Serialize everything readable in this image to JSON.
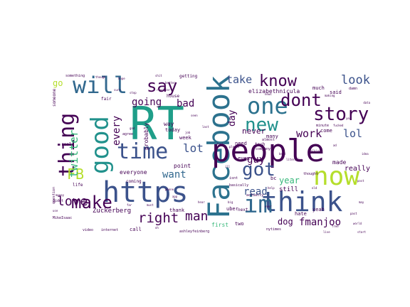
{
  "palette": {
    "deep-purple": "#440154",
    "indigo": "#3b528b",
    "slate-blue": "#31688e",
    "steel": "#2c728e",
    "teal": "#21918c",
    "green-teal": "#1f9e89",
    "green": "#35b779",
    "lime": "#6ece58",
    "chartreuse": "#b5de2b",
    "yellow": "#fde725"
  },
  "words": [
    {
      "text": "RT",
      "color": "#1f9e89",
      "weight": 100
    },
    {
      "text": "Facebook",
      "color": "#2c728e",
      "weight": 62
    },
    {
      "text": "people",
      "color": "#440154",
      "weight": 58
    },
    {
      "text": "https",
      "color": "#3b528b",
      "weight": 56
    },
    {
      "text": "think",
      "color": "#3b528b",
      "weight": 50
    },
    {
      "text": "now",
      "color": "#b5de2b",
      "weight": 47
    },
    {
      "text": "good",
      "color": "#21918c",
      "weight": 46
    },
    {
      "text": "will",
      "color": "#31688e",
      "weight": 44
    },
    {
      "text": "im",
      "color": "#31688e",
      "weight": 43
    },
    {
      "text": "one",
      "color": "#2c728e",
      "weight": 43
    },
    {
      "text": "thing",
      "color": "#440154",
      "weight": 40
    },
    {
      "text": "time",
      "color": "#3b528b",
      "weight": 39
    },
    {
      "text": "new",
      "color": "#21918c",
      "weight": 36
    },
    {
      "text": "dont",
      "color": "#440154",
      "weight": 34
    },
    {
      "text": "got",
      "color": "#3b528b",
      "weight": 32
    },
    {
      "text": "story",
      "color": "#440154",
      "weight": 32
    },
    {
      "text": "make",
      "color": "#440154",
      "weight": 30
    },
    {
      "text": "know",
      "color": "#440154",
      "weight": 28
    },
    {
      "text": "say",
      "color": "#440154",
      "weight": 28
    },
    {
      "text": "FB",
      "color": "#b5de2b",
      "weight": 26
    },
    {
      "text": "right",
      "color": "#440154",
      "weight": 24
    },
    {
      "text": "love",
      "color": "#440154",
      "weight": 22
    },
    {
      "text": "man",
      "color": "#440154",
      "weight": 22
    },
    {
      "text": "look",
      "color": "#3b528b",
      "weight": 21
    },
    {
      "text": "twitter",
      "color": "#35b779",
      "weight": 20
    },
    {
      "text": "take",
      "color": "#3b528b",
      "weight": 18
    },
    {
      "text": "lot",
      "color": "#3b528b",
      "weight": 18
    },
    {
      "text": "work",
      "color": "#440154",
      "weight": 17
    },
    {
      "text": "lol",
      "color": "#3b528b",
      "weight": 17
    },
    {
      "text": "want",
      "color": "#31688e",
      "weight": 16
    },
    {
      "text": "going",
      "color": "#440154",
      "weight": 16
    },
    {
      "text": "guy",
      "color": "#440154",
      "weight": 16
    },
    {
      "text": "fmanjoo",
      "color": "#440154",
      "weight": 15
    },
    {
      "text": "read",
      "color": "#3b528b",
      "weight": 15
    },
    {
      "text": "bad",
      "color": "#440154",
      "weight": 14
    },
    {
      "text": "every",
      "color": "#440154",
      "weight": 14
    },
    {
      "text": "day",
      "color": "#440154",
      "weight": 14
    },
    {
      "text": "year",
      "color": "#35b779",
      "weight": 13
    },
    {
      "text": "dog",
      "color": "#440154",
      "weight": 13
    },
    {
      "text": "go",
      "color": "#b5de2b",
      "weight": 12
    },
    {
      "text": "never",
      "color": "#440154",
      "weight": 12
    },
    {
      "text": "Zuckerberg",
      "color": "#440154",
      "weight": 10
    },
    {
      "text": "really",
      "color": "#440154",
      "weight": 10
    },
    {
      "text": "still",
      "color": "#440154",
      "weight": 10
    },
    {
      "text": "made",
      "color": "#440154",
      "weight": 9
    },
    {
      "text": "elizabethnicula",
      "color": "#440154",
      "weight": 9
    },
    {
      "text": "everyone",
      "color": "#440154",
      "weight": 9
    },
    {
      "text": "point",
      "color": "#440154",
      "weight": 9
    },
    {
      "text": "way",
      "color": "#440154",
      "weight": 9
    },
    {
      "text": "first",
      "color": "#35b779",
      "weight": 9
    },
    {
      "text": "probably",
      "color": "#440154",
      "weight": 9
    },
    {
      "text": "thank",
      "color": "#440154",
      "weight": 8
    },
    {
      "text": "hate",
      "color": "#440154",
      "weight": 8
    },
    {
      "text": "yeah",
      "color": "#440154",
      "weight": 8
    },
    {
      "text": "much",
      "color": "#440154",
      "weight": 8
    },
    {
      "text": "today",
      "color": "#440154",
      "weight": 8
    },
    {
      "text": "bc",
      "color": "#440154",
      "weight": 8
    },
    {
      "text": "two",
      "color": "#440154",
      "weight": 8
    },
    {
      "text": "even",
      "color": "#440154",
      "weight": 8
    },
    {
      "text": "need",
      "color": "#440154",
      "weight": 8
    },
    {
      "text": "said",
      "color": "#440154",
      "weight": 7
    },
    {
      "text": "week",
      "color": "#440154",
      "weight": 7
    },
    {
      "text": "uber",
      "color": "#440154",
      "weight": 7
    },
    {
      "text": "call",
      "color": "#440154",
      "weight": 7
    },
    {
      "text": "come",
      "color": "#440154",
      "weight": 7
    },
    {
      "text": "many",
      "color": "#440154",
      "weight": 7
    },
    {
      "text": "someone",
      "color": "#440154",
      "weight": 7
    },
    {
      "text": "getting",
      "color": "#440154",
      "weight": 6
    },
    {
      "text": "tech",
      "color": "#440154",
      "weight": 6
    },
    {
      "text": "life",
      "color": "#440154",
      "weight": 6
    },
    {
      "text": "house",
      "color": "#440154",
      "weight": 6
    },
    {
      "text": "next",
      "color": "#440154",
      "weight": 6
    },
    {
      "text": "fair",
      "color": "#440154",
      "weight": 6
    },
    {
      "text": "real",
      "color": "#440154",
      "weight": 6
    },
    {
      "text": "coming",
      "color": "#440154",
      "weight": 6
    },
    {
      "text": "ashleyfeinberg",
      "color": "#440154",
      "weight": 5
    },
    {
      "text": "MikeIsaac",
      "color": "#440154",
      "weight": 5
    },
    {
      "text": "nytimes",
      "color": "#440154",
      "weight": 5
    },
    {
      "text": "internet",
      "color": "#440154",
      "weight": 5
    },
    {
      "text": "thought",
      "color": "#440154",
      "weight": 5
    },
    {
      "text": "something",
      "color": "#440154",
      "weight": 5
    },
    {
      "text": "didnt",
      "color": "#440154",
      "weight": 5
    },
    {
      "text": "actually",
      "color": "#440154",
      "weight": 5
    },
    {
      "text": "damn",
      "color": "#440154",
      "weight": 5
    },
    {
      "text": "video",
      "color": "#440154",
      "weight": 5
    },
    {
      "text": "isnt",
      "color": "#440154",
      "weight": 5
    },
    {
      "text": "agree",
      "color": "#440154",
      "weight": 5
    },
    {
      "text": "company",
      "color": "#440154",
      "weight": 5
    },
    {
      "text": "almost",
      "color": "#440154",
      "weight": 5
    },
    {
      "text": "question",
      "color": "#440154",
      "weight": 5
    },
    {
      "text": "basically",
      "color": "#440154",
      "weight": 5
    },
    {
      "text": "minute",
      "color": "#440154",
      "weight": 5
    },
    {
      "text": "reporter",
      "color": "#440154",
      "weight": 4
    },
    {
      "text": "making",
      "color": "#440154",
      "weight": 4
    },
    {
      "text": "literally",
      "color": "#440154",
      "weight": 4
    },
    {
      "text": "fucked",
      "color": "#440154",
      "weight": 4
    },
    {
      "text": "please",
      "color": "#440154",
      "weight": 4
    },
    {
      "text": "stop",
      "color": "#440154",
      "weight": 4
    },
    {
      "text": "talking",
      "color": "#440154",
      "weight": 4
    },
    {
      "text": "sure",
      "color": "#440154",
      "weight": 4
    },
    {
      "text": "ill",
      "color": "#440154",
      "weight": 4
    },
    {
      "text": "though",
      "color": "#440154",
      "weight": 4
    },
    {
      "text": "best",
      "color": "#440154",
      "weight": 4
    },
    {
      "text": "far",
      "color": "#440154",
      "weight": 4
    },
    {
      "text": "oh",
      "color": "#440154",
      "weight": 4
    },
    {
      "text": "phone",
      "color": "#440154",
      "weight": 4
    },
    {
      "text": "seen",
      "color": "#440154",
      "weight": 4
    },
    {
      "text": "yes",
      "color": "#440154",
      "weight": 4
    },
    {
      "text": "ever",
      "color": "#440154",
      "weight": 4
    },
    {
      "text": "better",
      "color": "#440154",
      "weight": 4
    },
    {
      "text": "use",
      "color": "#440154",
      "weight": 4
    },
    {
      "text": "last",
      "color": "#440154",
      "weight": 4
    },
    {
      "text": "hope",
      "color": "#440154",
      "weight": 4
    },
    {
      "text": "god",
      "color": "#440154",
      "weight": 4
    },
    {
      "text": "money",
      "color": "#440154",
      "weight": 4
    },
    {
      "text": "news",
      "color": "#440154",
      "weight": 4
    },
    {
      "text": "past",
      "color": "#440154",
      "weight": 4
    },
    {
      "text": "shit",
      "color": "#440154",
      "weight": 4
    },
    {
      "text": "app",
      "color": "#440154",
      "weight": 4
    },
    {
      "text": "help",
      "color": "#440154",
      "weight": 4
    },
    {
      "text": "idea",
      "color": "#440154",
      "weight": 4
    },
    {
      "text": "job",
      "color": "#440154",
      "weight": 4
    },
    {
      "text": "feel",
      "color": "#440154",
      "weight": 4
    },
    {
      "text": "big",
      "color": "#440154",
      "weight": 4
    },
    {
      "text": "old",
      "color": "#440154",
      "weight": 4
    },
    {
      "text": "post",
      "color": "#440154",
      "weight": 4
    },
    {
      "text": "data",
      "color": "#440154",
      "weight": 4
    },
    {
      "text": "free",
      "color": "#440154",
      "weight": 4
    },
    {
      "text": "ad",
      "color": "#440154",
      "weight": 4
    },
    {
      "text": "may",
      "color": "#440154",
      "weight": 4
    },
    {
      "text": "start",
      "color": "#440154",
      "weight": 4
    },
    {
      "text": "live",
      "color": "#440154",
      "weight": 4
    },
    {
      "text": "hear",
      "color": "#440154",
      "weight": 4
    },
    {
      "text": "world",
      "color": "#440154",
      "weight": 4
    },
    {
      "text": "must",
      "color": "#440154",
      "weight": 4
    }
  ]
}
